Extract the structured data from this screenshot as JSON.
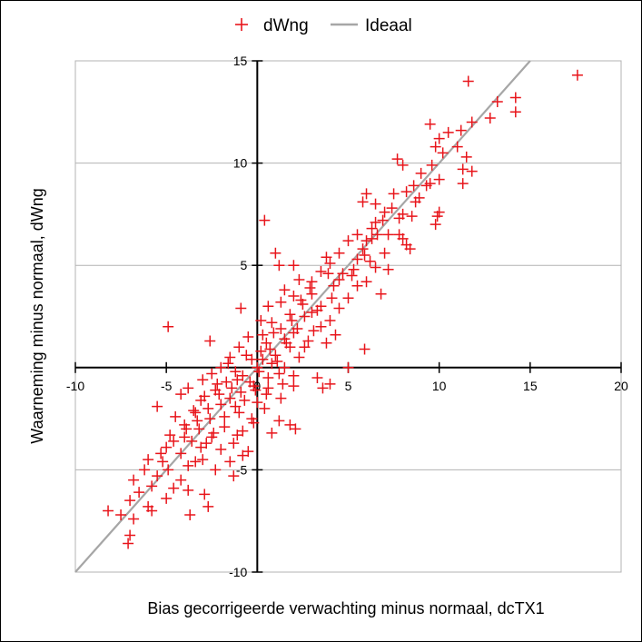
{
  "chart_data": {
    "type": "scatter",
    "title": "",
    "xlabel": "Bias gecorrigeerde verwachting minus normaal, dcTX1",
    "ylabel": "Waarneming minus normaal, dWng",
    "xlim": [
      -10,
      20
    ],
    "ylim": [
      -10,
      15
    ],
    "xticks": [
      -10,
      -5,
      0,
      5,
      10,
      15,
      20
    ],
    "yticks": [
      -10,
      -5,
      0,
      5,
      10,
      15
    ],
    "xtick_labels": [
      "-10",
      "-5",
      "0",
      "5",
      "10",
      "15",
      "20"
    ],
    "ytick_labels": [
      "-10",
      "-5",
      "0",
      "5",
      "10",
      "15"
    ],
    "grid": "horizontal",
    "legend_position": "top",
    "series": [
      {
        "name": "dWng",
        "marker": "plus",
        "color": "#e8151b",
        "points": [
          [
            17.6,
            14.3
          ],
          [
            11.6,
            14.0
          ],
          [
            14.2,
            13.2
          ],
          [
            13.2,
            13.0
          ],
          [
            14.2,
            12.5
          ],
          [
            12.8,
            12.2
          ],
          [
            11.8,
            12.0
          ],
          [
            9.5,
            11.9
          ],
          [
            10.5,
            11.5
          ],
          [
            11.2,
            11.6
          ],
          [
            10.0,
            11.2
          ],
          [
            11.0,
            10.8
          ],
          [
            9.8,
            10.8
          ],
          [
            11.5,
            10.3
          ],
          [
            10.2,
            10.5
          ],
          [
            7.7,
            10.2
          ],
          [
            11.8,
            9.6
          ],
          [
            11.3,
            9.7
          ],
          [
            11.3,
            9.0
          ],
          [
            8.0,
            9.9
          ],
          [
            9.0,
            9.5
          ],
          [
            8.6,
            8.9
          ],
          [
            10.0,
            9.2
          ],
          [
            9.5,
            9.0
          ],
          [
            8.2,
            8.6
          ],
          [
            7.5,
            8.5
          ],
          [
            8.9,
            8.3
          ],
          [
            6.0,
            8.5
          ],
          [
            6.5,
            8.0
          ],
          [
            5.8,
            8.1
          ],
          [
            7.0,
            7.6
          ],
          [
            10.0,
            7.6
          ],
          [
            9.9,
            7.4
          ],
          [
            8.0,
            7.5
          ],
          [
            8.5,
            7.4
          ],
          [
            7.8,
            7.3
          ],
          [
            6.5,
            7.1
          ],
          [
            9.8,
            7.0
          ],
          [
            0.4,
            7.2
          ],
          [
            6.3,
            6.8
          ],
          [
            6.6,
            6.5
          ],
          [
            5.5,
            6.5
          ],
          [
            7.2,
            6.5
          ],
          [
            5.0,
            6.2
          ],
          [
            6.0,
            6.2
          ],
          [
            7.8,
            6.5
          ],
          [
            8.0,
            6.3
          ],
          [
            8.2,
            6.0
          ],
          [
            5.8,
            5.8
          ],
          [
            4.5,
            5.6
          ],
          [
            1.0,
            5.6
          ],
          [
            7.0,
            5.6
          ],
          [
            8.4,
            5.8
          ],
          [
            3.8,
            5.4
          ],
          [
            5.5,
            5.3
          ],
          [
            6.2,
            5.2
          ],
          [
            4.0,
            5.1
          ],
          [
            2.0,
            5.0
          ],
          [
            1.2,
            5.0
          ],
          [
            6.5,
            4.9
          ],
          [
            7.2,
            4.8
          ],
          [
            3.5,
            4.7
          ],
          [
            5.2,
            4.5
          ],
          [
            4.5,
            4.3
          ],
          [
            3.0,
            4.2
          ],
          [
            2.3,
            4.3
          ],
          [
            5.5,
            4.0
          ],
          [
            6.0,
            4.2
          ],
          [
            4.2,
            4.0
          ],
          [
            1.5,
            3.8
          ],
          [
            3.0,
            3.6
          ],
          [
            2.0,
            3.5
          ],
          [
            5.0,
            3.4
          ],
          [
            6.8,
            3.6
          ],
          [
            2.5,
            3.1
          ],
          [
            1.3,
            3.2
          ],
          [
            -0.9,
            2.9
          ],
          [
            3.5,
            3.0
          ],
          [
            4.5,
            2.9
          ],
          [
            3.0,
            2.7
          ],
          [
            1.8,
            2.6
          ],
          [
            2.6,
            2.5
          ],
          [
            4.0,
            2.3
          ],
          [
            0.8,
            2.2
          ],
          [
            -4.9,
            2.0
          ],
          [
            3.5,
            2.0
          ],
          [
            1.3,
            1.9
          ],
          [
            2.0,
            1.7
          ],
          [
            4.3,
            1.6
          ],
          [
            0.3,
            1.6
          ],
          [
            -0.5,
            1.5
          ],
          [
            1.5,
            1.4
          ],
          [
            2.8,
            1.3
          ],
          [
            3.8,
            1.2
          ],
          [
            0.5,
            1.2
          ],
          [
            1.8,
            1.0
          ],
          [
            -2.6,
            1.3
          ],
          [
            -1.0,
            1.0
          ],
          [
            0.2,
            0.8
          ],
          [
            1.0,
            0.6
          ],
          [
            2.3,
            0.5
          ],
          [
            -0.3,
            0.4
          ],
          [
            0.8,
            0.2
          ],
          [
            1.5,
            0.0
          ],
          [
            5.9,
            0.9
          ],
          [
            -1.5,
            0.5
          ],
          [
            -2.0,
            0.0
          ],
          [
            0.0,
            0.0
          ],
          [
            -1.2,
            -0.2
          ],
          [
            1.2,
            -0.3
          ],
          [
            2.0,
            -0.4
          ],
          [
            -2.5,
            -0.3
          ],
          [
            -0.8,
            -0.4
          ],
          [
            0.6,
            -0.5
          ],
          [
            5.0,
            0.0
          ],
          [
            3.3,
            -0.5
          ],
          [
            -3.0,
            -0.6
          ],
          [
            -1.7,
            -0.7
          ],
          [
            -0.2,
            -0.9
          ],
          [
            1.4,
            -0.8
          ],
          [
            2.0,
            -0.9
          ],
          [
            4.0,
            -0.8
          ],
          [
            3.6,
            -1.0
          ],
          [
            -3.8,
            -1.0
          ],
          [
            -2.3,
            -1.1
          ],
          [
            -0.9,
            -1.2
          ],
          [
            0.5,
            -1.3
          ],
          [
            -4.2,
            -1.3
          ],
          [
            -1.5,
            -1.5
          ],
          [
            -3.1,
            -1.6
          ],
          [
            0.0,
            -1.7
          ],
          [
            -2.0,
            -1.8
          ],
          [
            -5.5,
            -1.9
          ],
          [
            -3.5,
            -2.1
          ],
          [
            -1.0,
            -2.2
          ],
          [
            0.4,
            -2.0
          ],
          [
            -4.5,
            -2.4
          ],
          [
            -2.6,
            -2.5
          ],
          [
            -0.3,
            -2.5
          ],
          [
            1.2,
            -2.6
          ],
          [
            -4.0,
            -2.8
          ],
          [
            -1.8,
            -2.9
          ],
          [
            -3.2,
            -3.0
          ],
          [
            -0.8,
            -3.1
          ],
          [
            1.8,
            -2.8
          ],
          [
            2.1,
            -3.0
          ],
          [
            -4.8,
            -3.3
          ],
          [
            -2.5,
            -3.4
          ],
          [
            0.8,
            -3.2
          ],
          [
            -3.6,
            -3.6
          ],
          [
            -1.3,
            -3.7
          ],
          [
            -5.0,
            -3.9
          ],
          [
            -2.0,
            -4.0
          ],
          [
            -4.2,
            -4.2
          ],
          [
            -0.8,
            -4.3
          ],
          [
            -3.0,
            -4.5
          ],
          [
            -5.2,
            -4.6
          ],
          [
            -1.5,
            -4.6
          ],
          [
            -6.0,
            -4.5
          ],
          [
            -3.8,
            -4.8
          ],
          [
            -2.3,
            -5.0
          ],
          [
            -6.2,
            -5.0
          ],
          [
            -0.5,
            -4.1
          ],
          [
            -1.3,
            -5.3
          ],
          [
            -5.5,
            -5.3
          ],
          [
            -4.2,
            -5.5
          ],
          [
            -6.8,
            -5.5
          ],
          [
            -5.8,
            -5.8
          ],
          [
            -4.6,
            -5.9
          ],
          [
            -3.8,
            -6.0
          ],
          [
            -6.5,
            -6.1
          ],
          [
            -2.9,
            -6.2
          ],
          [
            -7.0,
            -6.5
          ],
          [
            -5.0,
            -6.4
          ],
          [
            -6.0,
            -6.8
          ],
          [
            -2.7,
            -6.8
          ],
          [
            -8.2,
            -7.0
          ],
          [
            -5.8,
            -7.0
          ],
          [
            -7.5,
            -7.2
          ],
          [
            -3.7,
            -7.2
          ],
          [
            -6.8,
            -7.4
          ],
          [
            -7.0,
            -8.2
          ],
          [
            -7.1,
            -8.6
          ],
          [
            -3.4,
            -2.2
          ],
          [
            -2.9,
            -1.4
          ],
          [
            -2.2,
            -0.8
          ],
          [
            -1.6,
            0.2
          ],
          [
            -1.1,
            -0.6
          ],
          [
            -0.6,
            0.6
          ],
          [
            0.1,
            -0.2
          ],
          [
            0.7,
            0.9
          ],
          [
            1.1,
            0.3
          ],
          [
            1.6,
            1.2
          ],
          [
            2.2,
            1.9
          ],
          [
            2.6,
            1.0
          ],
          [
            3.1,
            1.8
          ],
          [
            3.3,
            2.8
          ],
          [
            4.1,
            3.4
          ],
          [
            4.7,
            4.6
          ],
          [
            5.3,
            4.8
          ],
          [
            5.9,
            5.5
          ],
          [
            6.3,
            6.3
          ],
          [
            6.9,
            7.2
          ],
          [
            7.4,
            7.8
          ],
          [
            8.7,
            8.1
          ],
          [
            9.3,
            8.9
          ],
          [
            9.6,
            9.9
          ],
          [
            -3.9,
            -3.0
          ],
          [
            -3.3,
            -2.6
          ],
          [
            -2.7,
            -2.0
          ],
          [
            -2.1,
            -1.3
          ],
          [
            -1.4,
            -1.0
          ],
          [
            -0.4,
            -0.7
          ],
          [
            0.3,
            0.4
          ],
          [
            0.9,
            1.7
          ],
          [
            1.9,
            2.3
          ],
          [
            2.4,
            3.3
          ],
          [
            2.9,
            3.9
          ],
          [
            3.9,
            4.6
          ],
          [
            -4.6,
            -3.6
          ],
          [
            -4.0,
            -3.4
          ],
          [
            -3.1,
            -3.9
          ],
          [
            -2.4,
            -3.2
          ],
          [
            -1.8,
            -2.4
          ],
          [
            -1.2,
            -1.9
          ],
          [
            -0.7,
            -1.6
          ],
          [
            -0.1,
            -1.1
          ],
          [
            0.6,
            -1.0
          ],
          [
            1.3,
            -1.5
          ],
          [
            0.2,
            2.3
          ],
          [
            0.6,
            3.0
          ],
          [
            -5.3,
            -4.2
          ],
          [
            -4.9,
            -5.0
          ],
          [
            -3.4,
            -4.6
          ],
          [
            -2.8,
            -3.7
          ],
          [
            -1.1,
            -3.3
          ],
          [
            -0.2,
            -2.7
          ]
        ]
      },
      {
        "name": "Ideaal",
        "type": "line",
        "color": "#a6a6a6",
        "points": [
          [
            -10,
            -10
          ],
          [
            15,
            15
          ]
        ]
      }
    ]
  }
}
